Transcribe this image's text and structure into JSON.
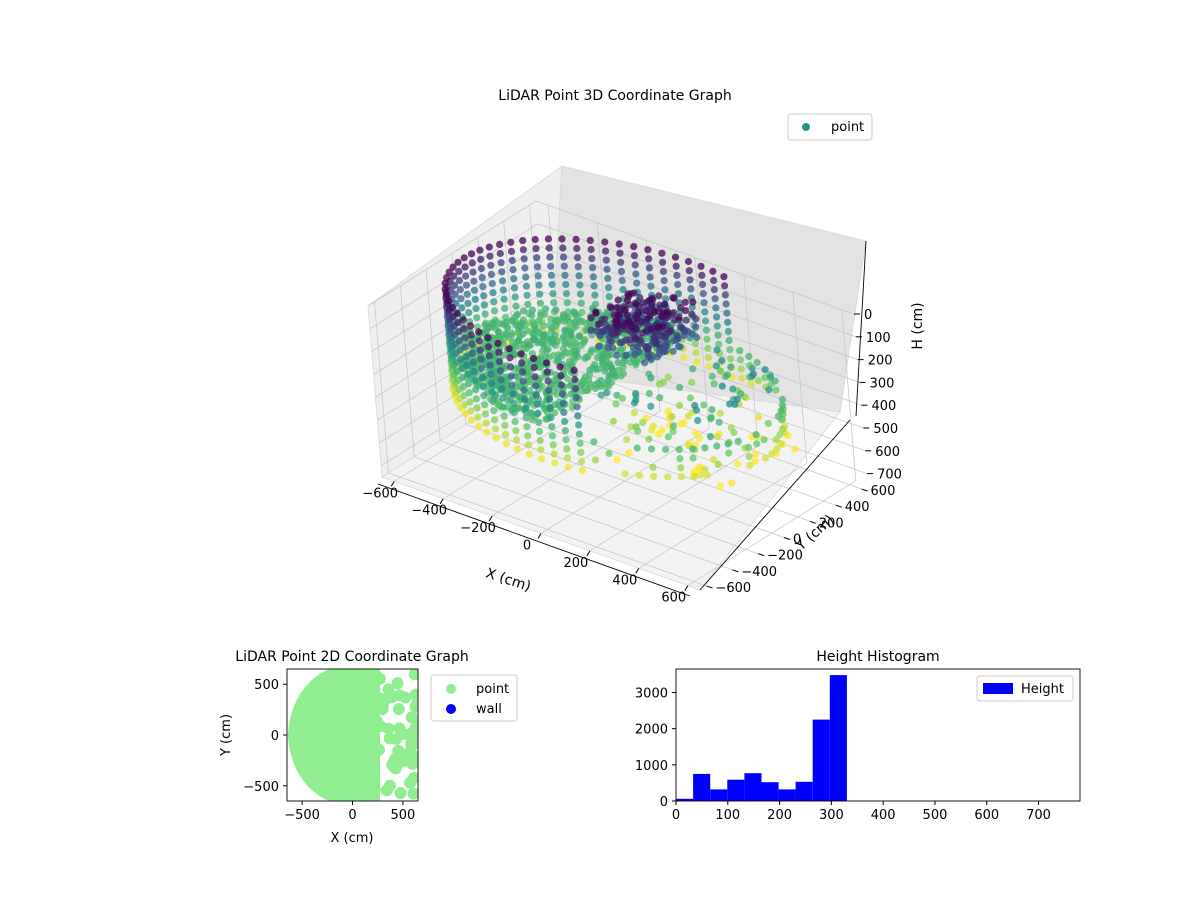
{
  "chart_data": [
    {
      "type": "scatter3d",
      "title": "LiDAR Point 3D Coordinate Graph",
      "xlabel": "X (cm)",
      "ylabel": "Y (cm)",
      "zlabel": "H (cm)",
      "xticks": [
        "−600",
        "−400",
        "−200",
        "0",
        "200",
        "400",
        "600"
      ],
      "yticks": [
        "−600",
        "−400",
        "−200",
        "0",
        "200",
        "400",
        "600"
      ],
      "zticks": [
        "0",
        "100",
        "200",
        "300",
        "400",
        "500",
        "600",
        "700"
      ],
      "xlim": [
        -650,
        650
      ],
      "ylim": [
        -650,
        650
      ],
      "zlim": [
        0,
        750
      ],
      "z_inverted": true,
      "grid": true,
      "colormap": "viridis",
      "legend": {
        "label": "point",
        "color": "#21918c",
        "location": "upper right"
      },
      "structure": {
        "cylinder_wall_radius": 600,
        "wall_height_range": [
          0,
          450
        ],
        "floor_height": 300,
        "object_cluster": {
          "x_range": [
            -50,
            200
          ],
          "y_range": [
            -100,
            300
          ],
          "h_range": [
            0,
            150
          ]
        }
      }
    },
    {
      "type": "scatter",
      "title": "LiDAR Point 2D Coordinate Graph",
      "xlabel": "X (cm)",
      "ylabel": "Y (cm)",
      "xticks": [
        "−500",
        "0",
        "500"
      ],
      "yticks": [
        "500",
        "0",
        "−500"
      ],
      "xlim": [
        -650,
        650
      ],
      "ylim": [
        -650,
        650
      ],
      "legend": [
        {
          "label": "point",
          "color": "#90ee90"
        },
        {
          "label": "wall",
          "color": "#0000ff"
        }
      ],
      "legend_placement": "outside right"
    },
    {
      "type": "bar",
      "title": "Height Histogram",
      "xticks": [
        "0",
        "100",
        "200",
        "300",
        "400",
        "500",
        "600",
        "700"
      ],
      "yticks": [
        "0",
        "1000",
        "2000",
        "3000"
      ],
      "xlim": [
        0,
        780
      ],
      "ylim": [
        0,
        3650
      ],
      "bin_width": 33,
      "bins": [
        {
          "x0": 0,
          "value": 60
        },
        {
          "x0": 33,
          "value": 750
        },
        {
          "x0": 66,
          "value": 320
        },
        {
          "x0": 99,
          "value": 590
        },
        {
          "x0": 132,
          "value": 770
        },
        {
          "x0": 165,
          "value": 520
        },
        {
          "x0": 198,
          "value": 320
        },
        {
          "x0": 231,
          "value": 530
        },
        {
          "x0": 264,
          "value": 2250
        },
        {
          "x0": 297,
          "value": 3480
        }
      ],
      "color": "#0000ff",
      "legend": {
        "label": "Height",
        "location": "upper right"
      }
    }
  ]
}
